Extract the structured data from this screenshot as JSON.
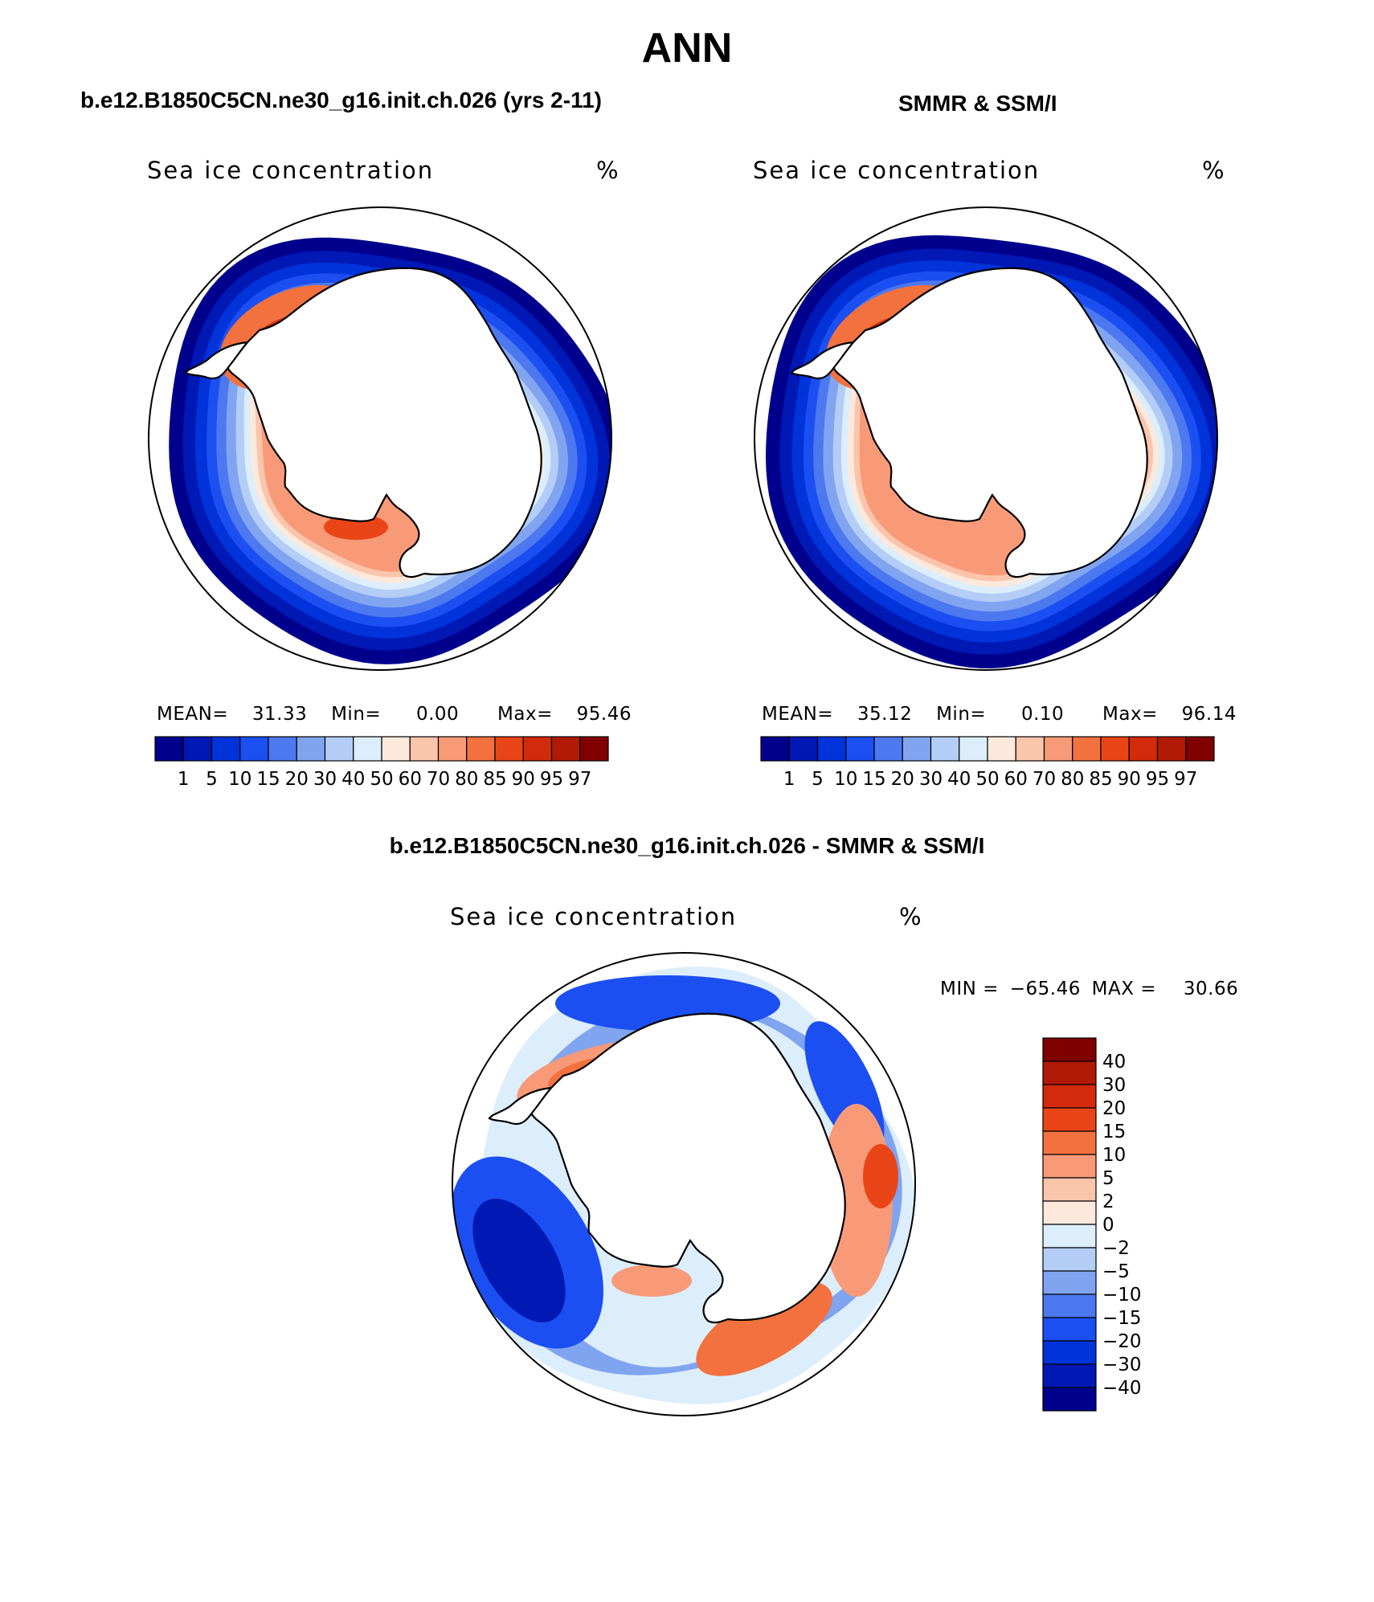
{
  "figure": {
    "title": "ANN"
  },
  "panels": {
    "model": {
      "header": "b.e12.B1850C5CN.ne30_g16.init.ch.026 (yrs 2-11)",
      "variable": "Sea ice concentration",
      "units": "%",
      "stats": {
        "mean_label": "MEAN=",
        "mean": "31.33",
        "min_label": "Min=",
        "min": "0.00",
        "max_label": "Max=",
        "max": "95.46"
      }
    },
    "obs": {
      "header": "SMMR & SSM/I",
      "variable": "Sea ice concentration",
      "units": "%",
      "stats": {
        "mean_label": "MEAN=",
        "mean": "35.12",
        "min_label": "Min=",
        "min": "0.10",
        "max_label": "Max=",
        "max": "96.14"
      }
    },
    "diff": {
      "header": "b.e12.B1850C5CN.ne30_g16.init.ch.026 - SMMR & SSM/I",
      "variable": "Sea ice concentration",
      "units": "%",
      "minmax": {
        "min_label": "MIN =",
        "min": "−65.46",
        "max_label": "MAX =",
        "max": "30.66"
      }
    }
  },
  "colorbars": {
    "concentration": {
      "colors": [
        "#00008c",
        "#0018b4",
        "#0033d9",
        "#1c4ff2",
        "#4c78f0",
        "#80a4f0",
        "#b3cdf7",
        "#dceefc",
        "#fde9dc",
        "#fbc5ac",
        "#f89a78",
        "#f2713f",
        "#ea4518",
        "#d42a0c",
        "#b01a06",
        "#800000"
      ],
      "labels": [
        "1",
        "5",
        "10",
        "15",
        "20",
        "30",
        "40",
        "50",
        "60",
        "70",
        "80",
        "85",
        "90",
        "95",
        "97"
      ]
    },
    "difference": {
      "colors_top_to_bottom": [
        "#800000",
        "#b01a06",
        "#d42a0c",
        "#ea4518",
        "#f2713f",
        "#f89a78",
        "#fbc5ac",
        "#fde9dc",
        "#dceefc",
        "#b3cdf7",
        "#80a4f0",
        "#4c78f0",
        "#1c4ff2",
        "#0033d9",
        "#0018b4",
        "#00008c"
      ],
      "labels_top_to_bottom": [
        "40",
        "30",
        "20",
        "15",
        "10",
        "5",
        "2",
        "0",
        "−2",
        "−5",
        "−10",
        "−15",
        "−20",
        "−30",
        "−40"
      ]
    }
  },
  "map_colors": {
    "land": "#ffffff",
    "coast": "#000000",
    "edge": "#000000"
  }
}
